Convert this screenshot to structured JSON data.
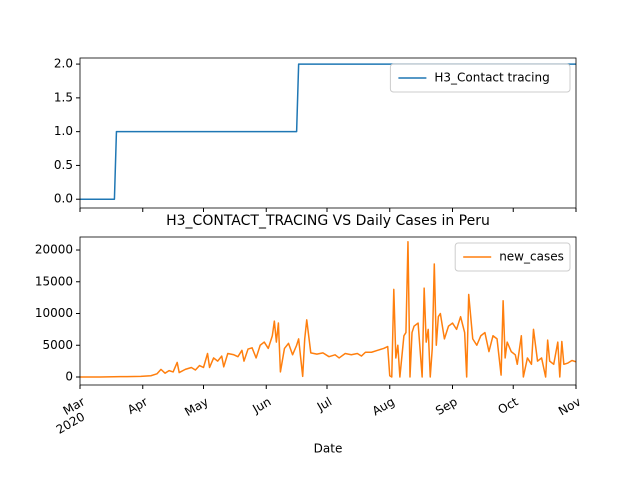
{
  "chart_data": [
    {
      "type": "line",
      "x": [
        0,
        17,
        18,
        107,
        108,
        245
      ],
      "series": [
        {
          "name": "H3_Contact tracing",
          "color": "#1f77b4",
          "values": [
            0,
            0,
            1,
            1,
            2,
            2
          ]
        }
      ],
      "xlim": [
        0,
        245
      ],
      "ylim": [
        -0.13,
        2.09
      ],
      "yticks": [
        {
          "value": 0,
          "label": "0.0"
        },
        {
          "value": 0.5,
          "label": "0.5"
        },
        {
          "value": 1,
          "label": "1.0"
        },
        {
          "value": 1.5,
          "label": "1.5"
        },
        {
          "value": 2,
          "label": "2.0"
        }
      ],
      "legend": "upper right"
    },
    {
      "type": "line",
      "title": "H3_CONTACT_TRACING VS Daily Cases in Peru",
      "x_label": "Date",
      "x_year_label": "2020",
      "x": [
        0,
        10,
        20,
        30,
        35,
        38,
        40,
        42,
        44,
        46,
        48,
        49,
        52,
        55,
        57,
        59,
        61,
        63,
        64,
        66,
        68,
        70,
        71,
        73,
        76,
        78,
        80,
        81,
        83,
        85,
        87,
        89,
        91,
        93,
        95,
        96,
        97,
        98,
        99,
        101,
        103,
        105,
        107,
        108,
        110,
        111,
        112,
        114,
        117,
        120,
        123,
        126,
        128,
        131,
        134,
        137,
        139,
        141,
        144,
        147,
        150,
        152,
        153,
        154,
        155,
        156,
        157,
        158,
        160,
        161,
        162,
        163,
        164,
        165,
        167,
        169,
        170,
        171,
        172,
        173,
        174,
        175,
        176,
        177,
        178,
        180,
        182,
        184,
        186,
        188,
        190,
        191,
        192,
        194,
        196,
        198,
        200,
        202,
        204,
        206,
        208,
        209,
        210,
        211,
        213,
        215,
        216,
        218,
        219,
        221,
        223,
        224,
        226,
        228,
        230,
        231,
        232,
        234,
        236,
        237,
        238,
        239,
        241,
        243,
        245
      ],
      "series": [
        {
          "name": "new_cases",
          "color": "#ff7f0e",
          "values": [
            0,
            0,
            50,
            100,
            200,
            500,
            1200,
            600,
            1000,
            800,
            2300,
            700,
            1200,
            1500,
            1100,
            1800,
            1500,
            3700,
            1500,
            3000,
            2500,
            3300,
            1600,
            3700,
            3500,
            3200,
            4200,
            2500,
            4400,
            4600,
            3000,
            5000,
            5500,
            4500,
            6500,
            8800,
            5500,
            8500,
            800,
            4500,
            5300,
            3500,
            5000,
            6000,
            100,
            6000,
            9000,
            3800,
            3600,
            3800,
            3200,
            3500,
            3000,
            3700,
            3500,
            3700,
            3300,
            3900,
            3900,
            4200,
            4500,
            4800,
            200,
            0,
            13800,
            3000,
            5000,
            0,
            6500,
            7000,
            21300,
            0,
            7000,
            8000,
            8500,
            0,
            14000,
            5500,
            7500,
            0,
            4500,
            17800,
            5000,
            9500,
            10000,
            6000,
            8000,
            8500,
            7500,
            9500,
            7000,
            0,
            13000,
            6000,
            5000,
            6500,
            7000,
            4000,
            6500,
            6000,
            300,
            12000,
            3000,
            5500,
            4000,
            3500,
            2000,
            6500,
            0,
            3000,
            2000,
            7500,
            2500,
            3000,
            0,
            5800,
            2500,
            2000,
            5500,
            0,
            5600,
            2000,
            2200,
            2600,
            2400
          ]
        }
      ],
      "xlim": [
        0,
        245
      ],
      "xticks": [
        {
          "value": 0,
          "label": "Mar"
        },
        {
          "value": 31,
          "label": "Apr"
        },
        {
          "value": 61,
          "label": "May"
        },
        {
          "value": 92,
          "label": "Jun"
        },
        {
          "value": 122,
          "label": "Jul"
        },
        {
          "value": 153,
          "label": "Aug"
        },
        {
          "value": 184,
          "label": "Sep"
        },
        {
          "value": 214,
          "label": "Oct"
        },
        {
          "value": 245,
          "label": "Nov"
        }
      ],
      "ylim": [
        -1260,
        22050
      ],
      "yticks": [
        0,
        5000,
        10000,
        15000,
        20000
      ],
      "legend": "upper right"
    }
  ]
}
